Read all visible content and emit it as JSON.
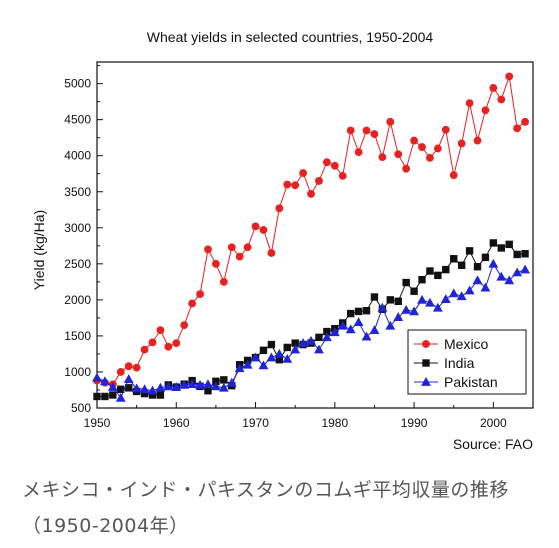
{
  "caption": "メキシコ・インド・パキスタンのコムギ平均収量の推移（1950-2004年）",
  "chart_data": {
    "type": "line",
    "title": "Wheat yields in selected countries, 1950-2004",
    "xlabel": "",
    "ylabel": "Yield (kg/Ha)",
    "source": "Source:  FAO",
    "xlim": [
      1950,
      2005
    ],
    "ylim": [
      500,
      5300
    ],
    "xticks": [
      1950,
      1960,
      1970,
      1980,
      1990,
      2000
    ],
    "yticks": [
      500,
      1000,
      1500,
      2000,
      2500,
      3000,
      3500,
      4000,
      4500,
      5000
    ],
    "legend_position": "lower-right",
    "x": [
      1950,
      1951,
      1952,
      1953,
      1954,
      1955,
      1956,
      1957,
      1958,
      1959,
      1960,
      1961,
      1962,
      1963,
      1964,
      1965,
      1966,
      1967,
      1968,
      1969,
      1970,
      1971,
      1972,
      1973,
      1974,
      1975,
      1976,
      1977,
      1978,
      1979,
      1980,
      1981,
      1982,
      1983,
      1984,
      1985,
      1986,
      1987,
      1988,
      1989,
      1990,
      1991,
      1992,
      1993,
      1994,
      1995,
      1996,
      1997,
      1998,
      1999,
      2000,
      2001,
      2002,
      2003,
      2004
    ],
    "series": [
      {
        "name": "Mexico",
        "color": "#e8201f",
        "marker": "circle",
        "values": [
          880,
          850,
          830,
          1000,
          1080,
          1060,
          1310,
          1410,
          1580,
          1350,
          1400,
          1650,
          1950,
          2080,
          2700,
          2500,
          2250,
          2730,
          2600,
          2730,
          3020,
          2970,
          2650,
          3270,
          3600,
          3590,
          3760,
          3470,
          3650,
          3910,
          3860,
          3720,
          4350,
          4050,
          4350,
          4300,
          3980,
          4470,
          4020,
          3820,
          4210,
          4120,
          3970,
          4100,
          4360,
          3730,
          4170,
          4730,
          4210,
          4630,
          4940,
          4780,
          5100,
          4380,
          4470
        ]
      },
      {
        "name": "India",
        "color": "#111111",
        "marker": "square",
        "values": [
          660,
          660,
          680,
          760,
          780,
          730,
          700,
          680,
          680,
          820,
          790,
          830,
          880,
          800,
          740,
          870,
          890,
          810,
          1100,
          1160,
          1200,
          1300,
          1380,
          1170,
          1340,
          1400,
          1380,
          1400,
          1480,
          1560,
          1600,
          1680,
          1810,
          1840,
          1850,
          2040,
          1870,
          2000,
          1980,
          2240,
          2120,
          2280,
          2400,
          2340,
          2420,
          2570,
          2480,
          2680,
          2460,
          2590,
          2790,
          2720,
          2770,
          2630,
          2640
        ]
      },
      {
        "name": "Pakistan",
        "color": "#1f24d8",
        "marker": "triangle",
        "values": [
          920,
          870,
          790,
          640,
          900,
          770,
          760,
          740,
          780,
          800,
          790,
          820,
          830,
          820,
          830,
          800,
          780,
          850,
          1050,
          1100,
          1200,
          1090,
          1200,
          1250,
          1180,
          1310,
          1400,
          1430,
          1310,
          1480,
          1550,
          1640,
          1590,
          1690,
          1490,
          1580,
          1890,
          1640,
          1760,
          1860,
          1840,
          2000,
          1960,
          1890,
          2010,
          2090,
          2050,
          2130,
          2270,
          2170,
          2500,
          2320,
          2270,
          2380,
          2420
        ]
      }
    ]
  }
}
